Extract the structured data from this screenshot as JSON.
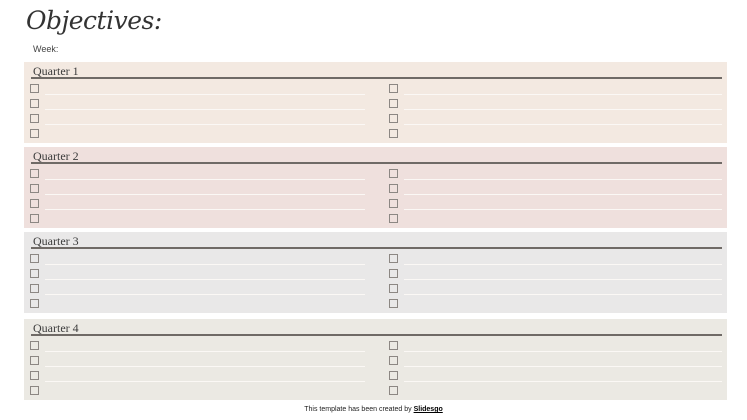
{
  "title": "Objectives:",
  "week_label": "Week:",
  "quarters": [
    {
      "label": "Quarter 1",
      "color": "#f3e9e1"
    },
    {
      "label": "Quarter 2",
      "color": "#efe0dd"
    },
    {
      "label": "Quarter 3",
      "color": "#e9e8e8"
    },
    {
      "label": "Quarter 4",
      "color": "#ebe9e3"
    }
  ],
  "rows_per_column": 4,
  "footer": {
    "text": "This template has been created by ",
    "link": "Slidesgo"
  }
}
